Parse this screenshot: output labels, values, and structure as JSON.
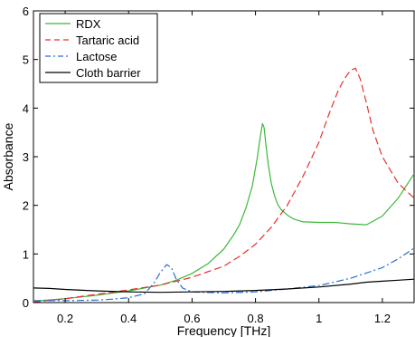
{
  "chart_data": {
    "type": "line",
    "title": "",
    "xlabel": "Frequency [THz]",
    "ylabel": "Absorbance",
    "xlim": [
      0.1,
      1.3
    ],
    "ylim": [
      0,
      6
    ],
    "xticks": [
      0.2,
      0.4,
      0.6,
      0.8,
      1,
      1.2
    ],
    "xtick_labels": [
      "0.2",
      "0.4",
      "0.6",
      "0.8",
      "1",
      "1.2"
    ],
    "yticks": [
      0,
      1,
      2,
      3,
      4,
      5,
      6
    ],
    "ytick_labels": [
      "0",
      "1",
      "2",
      "3",
      "4",
      "5",
      "6"
    ],
    "grid": false,
    "legend_position": "top-left",
    "series": [
      {
        "name": "RDX",
        "color": "#3cb83c",
        "dash": "solid",
        "x": [
          0.1,
          0.2,
          0.3,
          0.4,
          0.5,
          0.55,
          0.6,
          0.65,
          0.7,
          0.73,
          0.75,
          0.77,
          0.79,
          0.805,
          0.815,
          0.822,
          0.827,
          0.832,
          0.84,
          0.85,
          0.86,
          0.87,
          0.88,
          0.9,
          0.92,
          0.95,
          1.0,
          1.05,
          1.1,
          1.15,
          1.2,
          1.25,
          1.3
        ],
        "y": [
          0.03,
          0.08,
          0.15,
          0.24,
          0.36,
          0.46,
          0.6,
          0.8,
          1.1,
          1.38,
          1.6,
          1.95,
          2.4,
          2.95,
          3.4,
          3.68,
          3.6,
          3.3,
          2.85,
          2.45,
          2.2,
          2.02,
          1.92,
          1.8,
          1.72,
          1.66,
          1.65,
          1.65,
          1.62,
          1.6,
          1.78,
          2.15,
          2.65
        ]
      },
      {
        "name": "Tartaric acid",
        "color": "#e8302c",
        "dash": "dashed",
        "x": [
          0.1,
          0.2,
          0.3,
          0.4,
          0.5,
          0.6,
          0.7,
          0.75,
          0.8,
          0.85,
          0.9,
          0.95,
          1.0,
          1.03,
          1.06,
          1.08,
          1.1,
          1.115,
          1.13,
          1.15,
          1.17,
          1.2,
          1.25,
          1.3
        ],
        "y": [
          0.01,
          0.08,
          0.17,
          0.26,
          0.36,
          0.52,
          0.75,
          0.95,
          1.2,
          1.55,
          2.0,
          2.6,
          3.3,
          3.85,
          4.35,
          4.6,
          4.78,
          4.82,
          4.6,
          4.1,
          3.55,
          3.0,
          2.45,
          2.15
        ]
      },
      {
        "name": "Lactose",
        "color": "#2a6ecf",
        "dash": "dashdot",
        "x": [
          0.1,
          0.2,
          0.3,
          0.35,
          0.4,
          0.45,
          0.48,
          0.5,
          0.52,
          0.535,
          0.55,
          0.57,
          0.6,
          0.7,
          0.8,
          0.9,
          1.0,
          1.1,
          1.2,
          1.25,
          1.3
        ],
        "y": [
          0.04,
          0.04,
          0.05,
          0.07,
          0.1,
          0.18,
          0.4,
          0.62,
          0.78,
          0.72,
          0.48,
          0.3,
          0.22,
          0.2,
          0.22,
          0.28,
          0.35,
          0.5,
          0.72,
          0.9,
          1.12
        ]
      },
      {
        "name": "Cloth barrier",
        "color": "#000000",
        "dash": "solid",
        "x": [
          0.1,
          0.15,
          0.2,
          0.3,
          0.4,
          0.5,
          0.6,
          0.7,
          0.8,
          0.9,
          1.0,
          1.1,
          1.15,
          1.2,
          1.25,
          1.3
        ],
        "y": [
          0.3,
          0.29,
          0.27,
          0.24,
          0.22,
          0.21,
          0.22,
          0.23,
          0.25,
          0.28,
          0.32,
          0.38,
          0.42,
          0.44,
          0.46,
          0.48
        ]
      }
    ]
  }
}
